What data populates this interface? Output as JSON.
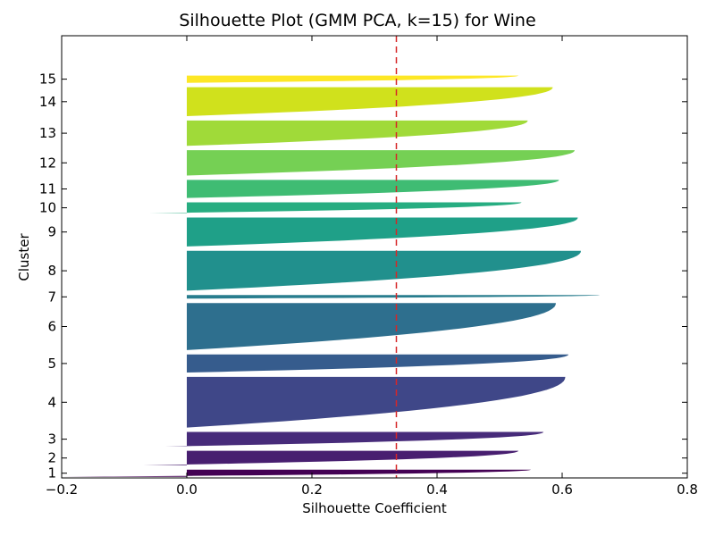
{
  "chart_data": {
    "type": "silhouette",
    "title": "Silhouette Plot (GMM PCA, k=15) for Wine",
    "xlabel": "Silhouette Coefficient",
    "ylabel": "Cluster",
    "xlim": [
      -0.2,
      0.8
    ],
    "x_ticks": [
      "−0.2",
      "0.0",
      "0.2",
      "0.4",
      "0.6",
      "0.8"
    ],
    "x_tick_values": [
      -0.2,
      0.0,
      0.2,
      0.4,
      0.6,
      0.8
    ],
    "average_silhouette": 0.335,
    "reference_line_color": "#d62728",
    "clusters": [
      {
        "label": "1",
        "samples": 2,
        "max": 0.55,
        "min": -0.2,
        "color": "#440154"
      },
      {
        "label": "2",
        "samples": 4,
        "max": 0.53,
        "min": -0.07,
        "color": "#481f70"
      },
      {
        "label": "3",
        "samples": 4,
        "max": 0.57,
        "min": -0.035,
        "color": "#472b7a"
      },
      {
        "label": "4",
        "samples": 14,
        "max": 0.605,
        "min": 0.0,
        "color": "#3f4788"
      },
      {
        "label": "5",
        "samples": 5,
        "max": 0.61,
        "min": 0.0,
        "color": "#365c8d"
      },
      {
        "label": "6",
        "samples": 13,
        "max": 0.59,
        "min": 0.0,
        "color": "#2e6f8e"
      },
      {
        "label": "7",
        "samples": 1,
        "max": 0.66,
        "min": -0.03,
        "color": "#287d8e"
      },
      {
        "label": "8",
        "samples": 11,
        "max": 0.63,
        "min": 0.0,
        "color": "#21908d"
      },
      {
        "label": "9",
        "samples": 8,
        "max": 0.625,
        "min": 0.0,
        "color": "#1fa088"
      },
      {
        "label": "10",
        "samples": 3,
        "max": 0.535,
        "min": -0.06,
        "color": "#27ad81"
      },
      {
        "label": "11",
        "samples": 5,
        "max": 0.595,
        "min": 0.0,
        "color": "#3fbc73"
      },
      {
        "label": "12",
        "samples": 7,
        "max": 0.62,
        "min": 0.0,
        "color": "#75d054"
      },
      {
        "label": "13",
        "samples": 7,
        "max": 0.545,
        "min": 0.0,
        "color": "#a0da39"
      },
      {
        "label": "14",
        "samples": 8,
        "max": 0.585,
        "min": 0.0,
        "color": "#d0e11c"
      },
      {
        "label": "15",
        "samples": 2,
        "max": 0.53,
        "min": 0.0,
        "color": "#fde725"
      }
    ]
  }
}
